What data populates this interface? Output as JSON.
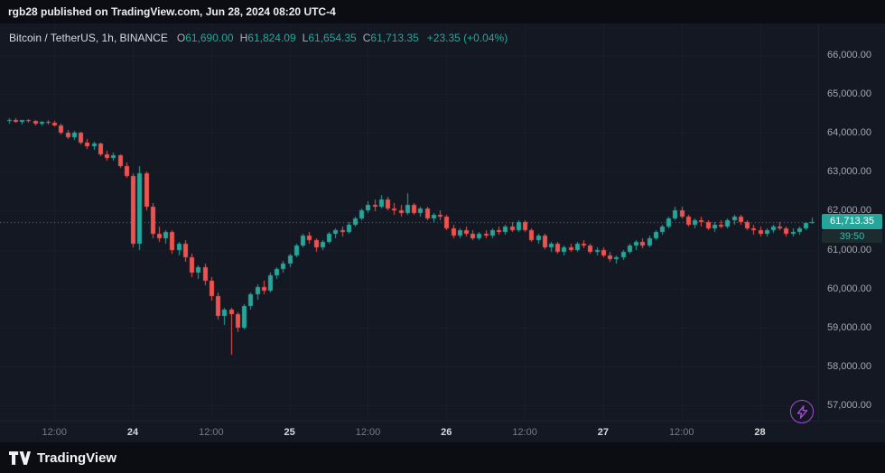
{
  "topbar": {
    "text": "rgb28 published on TradingView.com, Jun 28, 2024 08:20 UTC-4"
  },
  "legend": {
    "symbol": "Bitcoin / TetherUS, 1h, BINANCE",
    "ohlc": [
      {
        "label": "O",
        "value": "61,690.00"
      },
      {
        "label": "H",
        "value": "61,824.09"
      },
      {
        "label": "L",
        "value": "61,654.35"
      },
      {
        "label": "C",
        "value": "61,713.35"
      }
    ],
    "change": "+23.35 (+0.04%)"
  },
  "price_scale": {
    "last_price_label": "61,713.35",
    "countdown": "39:50"
  },
  "footer": {
    "brand": "TradingView"
  },
  "colors": {
    "up": "#26a69a",
    "down": "#ef5350",
    "grid": "#1a1f2b",
    "dotted_line": "#9598a1",
    "axis_text": "#a3a8b4",
    "day_text": "#d5d8e0",
    "badge_bg": "#26a69a",
    "badge_text": "#ffffff",
    "countdown_bg": "#1b2b2e",
    "countdown_text": "#3cbdb0",
    "lightning": "#a44bd3"
  },
  "chart_data": {
    "type": "candlestick",
    "title": "Bitcoin / TetherUS, 1h, BINANCE",
    "symbol": "Bitcoin / TetherUS",
    "interval": "1h",
    "exchange": "BINANCE",
    "last_bar": {
      "open": 61690.0,
      "high": 61824.09,
      "low": 61654.35,
      "close": 61713.35,
      "change": 23.35,
      "change_pct": 0.04,
      "countdown": "39:50"
    },
    "ylim": [
      56606,
      66812
    ],
    "grid": true,
    "price_ticks": [
      {
        "value": 66000,
        "label": "66,000.00"
      },
      {
        "value": 65000,
        "label": "65,000.00"
      },
      {
        "value": 64000,
        "label": "64,000.00"
      },
      {
        "value": 63000,
        "label": "63,000.00"
      },
      {
        "value": 62000,
        "label": "62,000.00"
      },
      {
        "value": 61000,
        "label": "61,000.00"
      },
      {
        "value": 60000,
        "label": "60,000.00"
      },
      {
        "value": 59000,
        "label": "59,000.00"
      },
      {
        "value": 58000,
        "label": "58,000.00"
      },
      {
        "value": 57000,
        "label": "57,000.00"
      }
    ],
    "time_ticks": [
      {
        "label": "12:00",
        "index": 7,
        "major": false
      },
      {
        "label": "24",
        "index": 19,
        "major": true
      },
      {
        "label": "12:00",
        "index": 31,
        "major": false
      },
      {
        "label": "25",
        "index": 43,
        "major": true
      },
      {
        "label": "12:00",
        "index": 55,
        "major": false
      },
      {
        "label": "26",
        "index": 67,
        "major": true
      },
      {
        "label": "12:00",
        "index": 79,
        "major": false
      },
      {
        "label": "27",
        "index": 91,
        "major": true
      },
      {
        "label": "12:00",
        "index": 103,
        "major": false
      },
      {
        "label": "28",
        "index": 115,
        "major": true
      }
    ],
    "candles": [
      [
        64300,
        64380,
        64250,
        64330
      ],
      [
        64330,
        64370,
        64260,
        64290
      ],
      [
        64290,
        64340,
        64230,
        64320
      ],
      [
        64320,
        64360,
        64270,
        64300
      ],
      [
        64300,
        64330,
        64200,
        64240
      ],
      [
        64240,
        64310,
        64190,
        64280
      ],
      [
        64280,
        64320,
        64210,
        64250
      ],
      [
        64250,
        64300,
        64150,
        64200
      ],
      [
        64200,
        64230,
        63950,
        64000
      ],
      [
        64000,
        64080,
        63850,
        63900
      ],
      [
        63900,
        64050,
        63820,
        64000
      ],
      [
        64000,
        64020,
        63700,
        63750
      ],
      [
        63750,
        63850,
        63600,
        63650
      ],
      [
        63650,
        63780,
        63560,
        63720
      ],
      [
        63720,
        63750,
        63400,
        63450
      ],
      [
        63450,
        63550,
        63300,
        63350
      ],
      [
        63350,
        63500,
        63280,
        63420
      ],
      [
        63420,
        63450,
        63100,
        63150
      ],
      [
        63150,
        63250,
        62850,
        62900
      ],
      [
        62900,
        62950,
        61050,
        61150
      ],
      [
        61150,
        63150,
        61000,
        62950
      ],
      [
        62950,
        63000,
        62000,
        62100
      ],
      [
        62100,
        62200,
        61300,
        61400
      ],
      [
        61400,
        61600,
        61200,
        61300
      ],
      [
        61300,
        61500,
        61150,
        61450
      ],
      [
        61450,
        61500,
        60900,
        61000
      ],
      [
        61000,
        61200,
        60850,
        61150
      ],
      [
        61150,
        61250,
        60700,
        60800
      ],
      [
        60800,
        60900,
        60300,
        60400
      ],
      [
        60400,
        60600,
        60250,
        60550
      ],
      [
        60550,
        60650,
        60100,
        60200
      ],
      [
        60200,
        60300,
        59700,
        59800
      ],
      [
        59800,
        59900,
        59200,
        59300
      ],
      [
        59300,
        59500,
        59050,
        59450
      ],
      [
        59450,
        59500,
        58300,
        59350
      ],
      [
        59350,
        59400,
        58900,
        59000
      ],
      [
        59000,
        59600,
        58950,
        59550
      ],
      [
        59550,
        59900,
        59450,
        59850
      ],
      [
        59850,
        60100,
        59700,
        60050
      ],
      [
        60050,
        60200,
        59850,
        59950
      ],
      [
        59950,
        60400,
        59900,
        60350
      ],
      [
        60350,
        60550,
        60250,
        60500
      ],
      [
        60500,
        60700,
        60400,
        60650
      ],
      [
        60650,
        60900,
        60550,
        60850
      ],
      [
        60850,
        61150,
        60800,
        61100
      ],
      [
        61100,
        61400,
        61050,
        61350
      ],
      [
        61350,
        61450,
        61150,
        61250
      ],
      [
        61250,
        61300,
        60950,
        61050
      ],
      [
        61050,
        61250,
        61000,
        61200
      ],
      [
        61200,
        61450,
        61150,
        61400
      ],
      [
        61400,
        61550,
        61300,
        61500
      ],
      [
        61500,
        61600,
        61350,
        61450
      ],
      [
        61450,
        61700,
        61400,
        61650
      ],
      [
        61650,
        61850,
        61600,
        61800
      ],
      [
        61800,
        62050,
        61750,
        62000
      ],
      [
        62000,
        62250,
        61950,
        62150
      ],
      [
        62150,
        62300,
        62000,
        62100
      ],
      [
        62100,
        62400,
        62050,
        62300
      ],
      [
        62300,
        62350,
        62000,
        62050
      ],
      [
        62050,
        62200,
        61900,
        62000
      ],
      [
        62000,
        62150,
        61850,
        61950
      ],
      [
        61950,
        62450,
        61900,
        62150
      ],
      [
        62150,
        62200,
        61900,
        61950
      ],
      [
        61950,
        62100,
        61850,
        62050
      ],
      [
        62050,
        62100,
        61750,
        61800
      ],
      [
        61800,
        61950,
        61700,
        61900
      ],
      [
        61900,
        62000,
        61750,
        61850
      ],
      [
        61850,
        61900,
        61500,
        61550
      ],
      [
        61550,
        61650,
        61300,
        61350
      ],
      [
        61350,
        61550,
        61300,
        61500
      ],
      [
        61500,
        61600,
        61350,
        61400
      ],
      [
        61400,
        61500,
        61250,
        61300
      ],
      [
        61300,
        61450,
        61250,
        61400
      ],
      [
        61400,
        61500,
        61300,
        61350
      ],
      [
        61350,
        61550,
        61300,
        61500
      ],
      [
        61500,
        61600,
        61400,
        61450
      ],
      [
        61450,
        61650,
        61400,
        61600
      ],
      [
        61600,
        61700,
        61450,
        61500
      ],
      [
        61500,
        61750,
        61450,
        61700
      ],
      [
        61700,
        61750,
        61450,
        61500
      ],
      [
        61500,
        61550,
        61200,
        61250
      ],
      [
        61250,
        61400,
        61150,
        61350
      ],
      [
        61350,
        61400,
        61000,
        61050
      ],
      [
        61050,
        61200,
        60950,
        61150
      ],
      [
        61150,
        61200,
        60900,
        60950
      ],
      [
        60950,
        61100,
        60850,
        61050
      ],
      [
        61050,
        61150,
        60950,
        61000
      ],
      [
        61000,
        61200,
        60950,
        61150
      ],
      [
        61150,
        61250,
        61050,
        61100
      ],
      [
        61100,
        61150,
        60900,
        60950
      ],
      [
        60950,
        61050,
        60850,
        61000
      ],
      [
        61000,
        61050,
        60800,
        60850
      ],
      [
        60850,
        60950,
        60700,
        60750
      ],
      [
        60750,
        60850,
        60650,
        60800
      ],
      [
        60800,
        61000,
        60750,
        60950
      ],
      [
        60950,
        61150,
        60900,
        61100
      ],
      [
        61100,
        61250,
        61000,
        61200
      ],
      [
        61200,
        61300,
        61050,
        61100
      ],
      [
        61100,
        61350,
        61050,
        61300
      ],
      [
        61300,
        61500,
        61250,
        61450
      ],
      [
        61450,
        61650,
        61400,
        61600
      ],
      [
        61600,
        61850,
        61550,
        61800
      ],
      [
        61800,
        62100,
        61750,
        62000
      ],
      [
        62000,
        62100,
        61800,
        61850
      ],
      [
        61850,
        61900,
        61600,
        61650
      ],
      [
        61650,
        61800,
        61550,
        61750
      ],
      [
        61750,
        61850,
        61600,
        61700
      ],
      [
        61700,
        61750,
        61500,
        61550
      ],
      [
        61550,
        61700,
        61450,
        61650
      ],
      [
        61650,
        61750,
        61550,
        61600
      ],
      [
        61600,
        61800,
        61550,
        61750
      ],
      [
        61750,
        61900,
        61650,
        61850
      ],
      [
        61850,
        61900,
        61650,
        61700
      ],
      [
        61700,
        61750,
        61500,
        61550
      ],
      [
        61550,
        61650,
        61400,
        61500
      ],
      [
        61500,
        61600,
        61350,
        61400
      ],
      [
        61400,
        61550,
        61350,
        61500
      ],
      [
        61500,
        61650,
        61450,
        61600
      ],
      [
        61600,
        61700,
        61500,
        61550
      ],
      [
        61550,
        61600,
        61350,
        61400
      ],
      [
        61400,
        61550,
        61350,
        61450
      ],
      [
        61450,
        61600,
        61400,
        61550
      ],
      [
        61550,
        61700,
        61500,
        61690
      ],
      [
        61690,
        61824.09,
        61654.35,
        61713.35
      ]
    ]
  }
}
